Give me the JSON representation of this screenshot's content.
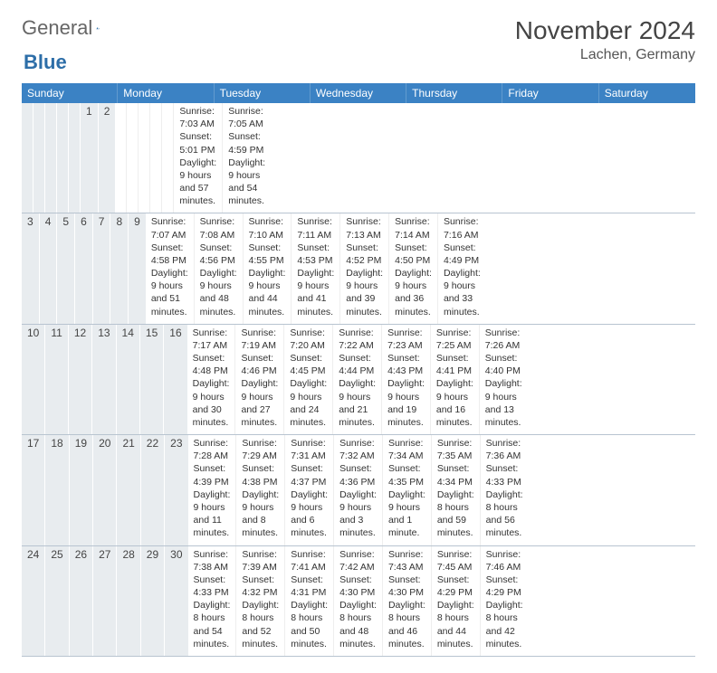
{
  "logo": {
    "text1": "General",
    "text2": "Blue"
  },
  "title": "November 2024",
  "location": "Lachen, Germany",
  "colors": {
    "header_bg": "#3b82c4",
    "header_text": "#ffffff",
    "daynum_bg": "#e8ecef",
    "border": "#b8c4d0",
    "body_text": "#333333"
  },
  "day_names": [
    "Sunday",
    "Monday",
    "Tuesday",
    "Wednesday",
    "Thursday",
    "Friday",
    "Saturday"
  ],
  "weeks": [
    [
      {
        "num": "",
        "lines": [
          "",
          "",
          "",
          ""
        ]
      },
      {
        "num": "",
        "lines": [
          "",
          "",
          "",
          ""
        ]
      },
      {
        "num": "",
        "lines": [
          "",
          "",
          "",
          ""
        ]
      },
      {
        "num": "",
        "lines": [
          "",
          "",
          "",
          ""
        ]
      },
      {
        "num": "",
        "lines": [
          "",
          "",
          "",
          ""
        ]
      },
      {
        "num": "1",
        "lines": [
          "Sunrise: 7:03 AM",
          "Sunset: 5:01 PM",
          "Daylight: 9 hours",
          "and 57 minutes."
        ]
      },
      {
        "num": "2",
        "lines": [
          "Sunrise: 7:05 AM",
          "Sunset: 4:59 PM",
          "Daylight: 9 hours",
          "and 54 minutes."
        ]
      }
    ],
    [
      {
        "num": "3",
        "lines": [
          "Sunrise: 7:07 AM",
          "Sunset: 4:58 PM",
          "Daylight: 9 hours",
          "and 51 minutes."
        ]
      },
      {
        "num": "4",
        "lines": [
          "Sunrise: 7:08 AM",
          "Sunset: 4:56 PM",
          "Daylight: 9 hours",
          "and 48 minutes."
        ]
      },
      {
        "num": "5",
        "lines": [
          "Sunrise: 7:10 AM",
          "Sunset: 4:55 PM",
          "Daylight: 9 hours",
          "and 44 minutes."
        ]
      },
      {
        "num": "6",
        "lines": [
          "Sunrise: 7:11 AM",
          "Sunset: 4:53 PM",
          "Daylight: 9 hours",
          "and 41 minutes."
        ]
      },
      {
        "num": "7",
        "lines": [
          "Sunrise: 7:13 AM",
          "Sunset: 4:52 PM",
          "Daylight: 9 hours",
          "and 39 minutes."
        ]
      },
      {
        "num": "8",
        "lines": [
          "Sunrise: 7:14 AM",
          "Sunset: 4:50 PM",
          "Daylight: 9 hours",
          "and 36 minutes."
        ]
      },
      {
        "num": "9",
        "lines": [
          "Sunrise: 7:16 AM",
          "Sunset: 4:49 PM",
          "Daylight: 9 hours",
          "and 33 minutes."
        ]
      }
    ],
    [
      {
        "num": "10",
        "lines": [
          "Sunrise: 7:17 AM",
          "Sunset: 4:48 PM",
          "Daylight: 9 hours",
          "and 30 minutes."
        ]
      },
      {
        "num": "11",
        "lines": [
          "Sunrise: 7:19 AM",
          "Sunset: 4:46 PM",
          "Daylight: 9 hours",
          "and 27 minutes."
        ]
      },
      {
        "num": "12",
        "lines": [
          "Sunrise: 7:20 AM",
          "Sunset: 4:45 PM",
          "Daylight: 9 hours",
          "and 24 minutes."
        ]
      },
      {
        "num": "13",
        "lines": [
          "Sunrise: 7:22 AM",
          "Sunset: 4:44 PM",
          "Daylight: 9 hours",
          "and 21 minutes."
        ]
      },
      {
        "num": "14",
        "lines": [
          "Sunrise: 7:23 AM",
          "Sunset: 4:43 PM",
          "Daylight: 9 hours",
          "and 19 minutes."
        ]
      },
      {
        "num": "15",
        "lines": [
          "Sunrise: 7:25 AM",
          "Sunset: 4:41 PM",
          "Daylight: 9 hours",
          "and 16 minutes."
        ]
      },
      {
        "num": "16",
        "lines": [
          "Sunrise: 7:26 AM",
          "Sunset: 4:40 PM",
          "Daylight: 9 hours",
          "and 13 minutes."
        ]
      }
    ],
    [
      {
        "num": "17",
        "lines": [
          "Sunrise: 7:28 AM",
          "Sunset: 4:39 PM",
          "Daylight: 9 hours",
          "and 11 minutes."
        ]
      },
      {
        "num": "18",
        "lines": [
          "Sunrise: 7:29 AM",
          "Sunset: 4:38 PM",
          "Daylight: 9 hours",
          "and 8 minutes."
        ]
      },
      {
        "num": "19",
        "lines": [
          "Sunrise: 7:31 AM",
          "Sunset: 4:37 PM",
          "Daylight: 9 hours",
          "and 6 minutes."
        ]
      },
      {
        "num": "20",
        "lines": [
          "Sunrise: 7:32 AM",
          "Sunset: 4:36 PM",
          "Daylight: 9 hours",
          "and 3 minutes."
        ]
      },
      {
        "num": "21",
        "lines": [
          "Sunrise: 7:34 AM",
          "Sunset: 4:35 PM",
          "Daylight: 9 hours",
          "and 1 minute."
        ]
      },
      {
        "num": "22",
        "lines": [
          "Sunrise: 7:35 AM",
          "Sunset: 4:34 PM",
          "Daylight: 8 hours",
          "and 59 minutes."
        ]
      },
      {
        "num": "23",
        "lines": [
          "Sunrise: 7:36 AM",
          "Sunset: 4:33 PM",
          "Daylight: 8 hours",
          "and 56 minutes."
        ]
      }
    ],
    [
      {
        "num": "24",
        "lines": [
          "Sunrise: 7:38 AM",
          "Sunset: 4:33 PM",
          "Daylight: 8 hours",
          "and 54 minutes."
        ]
      },
      {
        "num": "25",
        "lines": [
          "Sunrise: 7:39 AM",
          "Sunset: 4:32 PM",
          "Daylight: 8 hours",
          "and 52 minutes."
        ]
      },
      {
        "num": "26",
        "lines": [
          "Sunrise: 7:41 AM",
          "Sunset: 4:31 PM",
          "Daylight: 8 hours",
          "and 50 minutes."
        ]
      },
      {
        "num": "27",
        "lines": [
          "Sunrise: 7:42 AM",
          "Sunset: 4:30 PM",
          "Daylight: 8 hours",
          "and 48 minutes."
        ]
      },
      {
        "num": "28",
        "lines": [
          "Sunrise: 7:43 AM",
          "Sunset: 4:30 PM",
          "Daylight: 8 hours",
          "and 46 minutes."
        ]
      },
      {
        "num": "29",
        "lines": [
          "Sunrise: 7:45 AM",
          "Sunset: 4:29 PM",
          "Daylight: 8 hours",
          "and 44 minutes."
        ]
      },
      {
        "num": "30",
        "lines": [
          "Sunrise: 7:46 AM",
          "Sunset: 4:29 PM",
          "Daylight: 8 hours",
          "and 42 minutes."
        ]
      }
    ]
  ]
}
